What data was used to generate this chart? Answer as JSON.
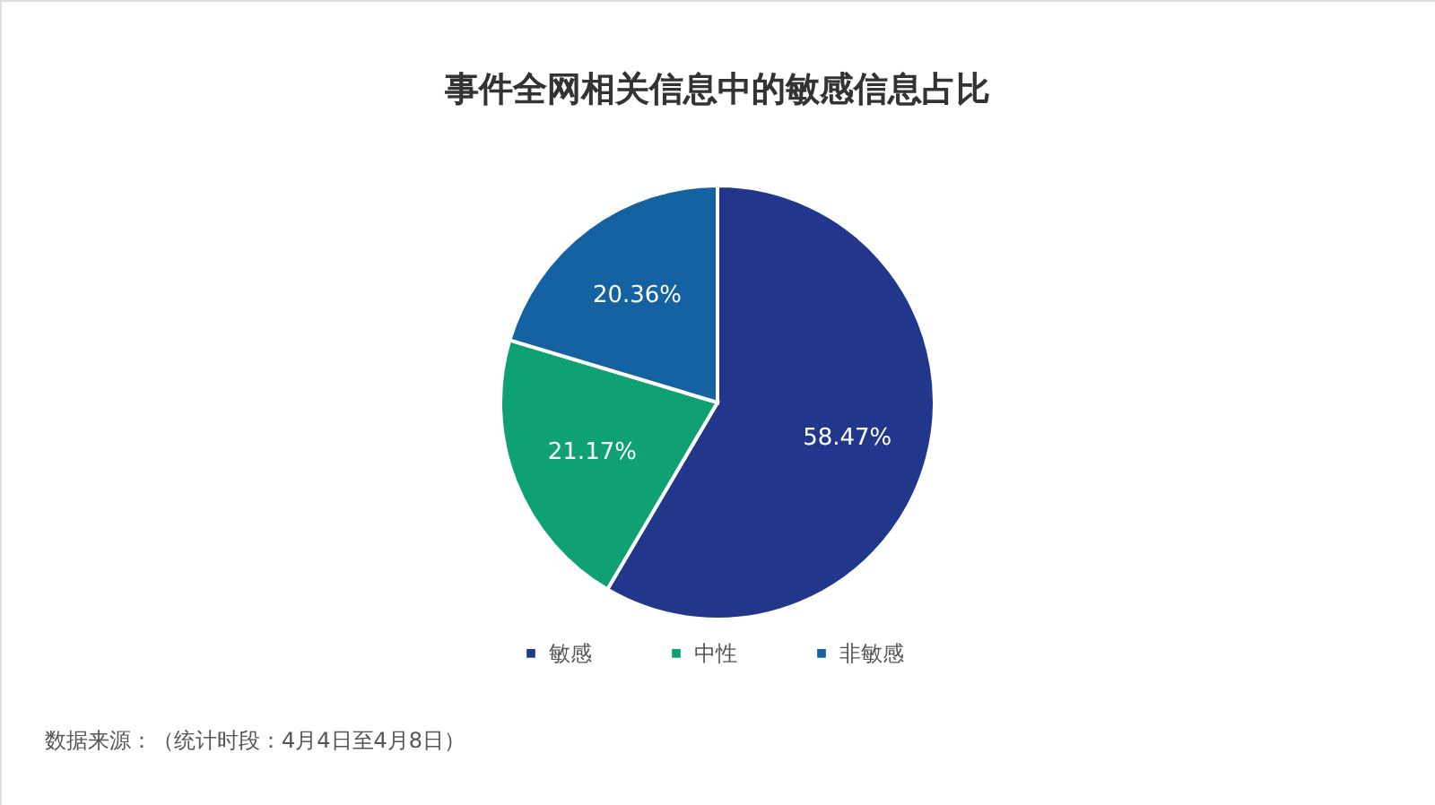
{
  "chart_data": {
    "type": "pie",
    "title": "事件全网相关信息中的敏感信息占比",
    "categories": [
      "敏感",
      "中性",
      "非敏感"
    ],
    "values": [
      58.47,
      21.17,
      20.36
    ],
    "colors": [
      "#22378b",
      "#0fa173",
      "#1562a3"
    ],
    "value_labels": [
      "58.47%",
      "21.17%",
      "20.36%"
    ],
    "legend": "bottom",
    "annotations": [
      "数据来源：（统计时段：4月4日至4月8日）"
    ]
  }
}
